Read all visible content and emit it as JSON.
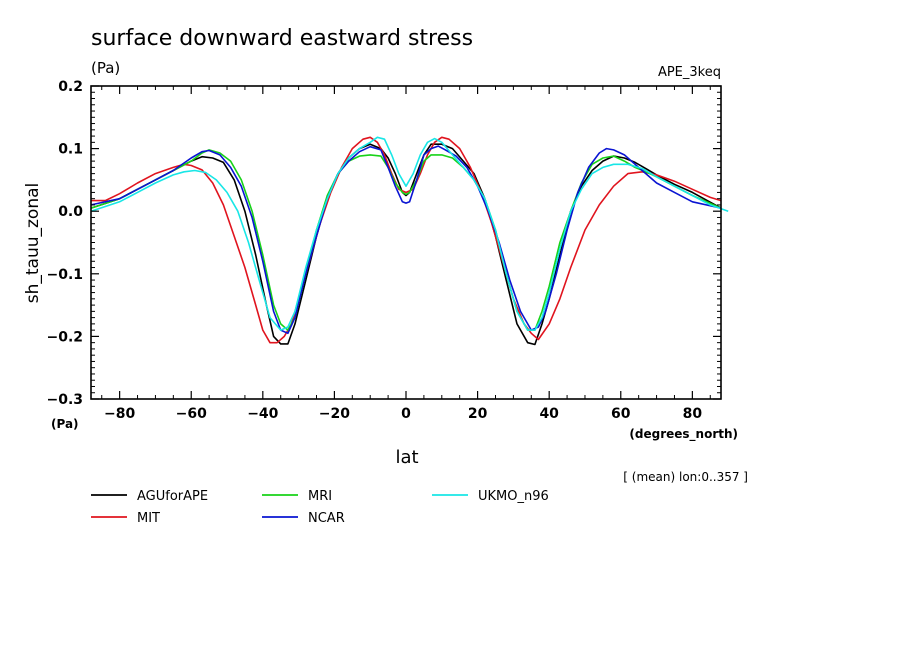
{
  "chart_data": {
    "type": "line",
    "title": "surface downward eastward stress",
    "title_unit": "(Pa)",
    "experiment": "APE_3keq",
    "xlabel": "lat",
    "xlabel_unit": "(degrees_north)",
    "ylabel": "sh_tauu_zonal",
    "ylabel_unit": "(Pa)",
    "note": "[ (mean) lon:0..357 ]",
    "xlim": [
      -88,
      88
    ],
    "ylim": [
      -0.3,
      0.2
    ],
    "x_ticks": [
      -80,
      -60,
      -40,
      -20,
      0,
      20,
      40,
      60,
      80
    ],
    "x_tick_labels": [
      "−80",
      "−60",
      "−40",
      "−20",
      "0",
      "20",
      "40",
      "60",
      "80"
    ],
    "y_ticks": [
      -0.3,
      -0.2,
      -0.1,
      0.0,
      0.1,
      0.2
    ],
    "y_tick_labels": [
      "−0.3",
      "−0.2",
      "−0.1",
      "0.0",
      "0.1",
      "0.2"
    ],
    "series": [
      {
        "name": "AGUforAPE",
        "color": "#000000",
        "x": [
          -88,
          -80,
          -75,
          -70,
          -65,
          -60,
          -57,
          -54,
          -51,
          -48,
          -45,
          -42,
          -39,
          -37,
          -35,
          -33,
          -31,
          -28,
          -25,
          -22,
          -19,
          -16,
          -13,
          -10,
          -7,
          -5,
          -3,
          -1,
          0,
          1,
          3,
          5,
          7,
          10,
          13,
          16,
          19,
          22,
          25,
          28,
          31,
          34,
          36,
          38,
          40,
          43,
          46,
          49,
          52,
          55,
          58,
          61,
          64,
          67,
          70,
          75,
          80,
          88
        ],
        "y": [
          0.005,
          0.02,
          0.035,
          0.05,
          0.065,
          0.08,
          0.087,
          0.085,
          0.078,
          0.05,
          0.0,
          -0.07,
          -0.15,
          -0.2,
          -0.212,
          -0.212,
          -0.18,
          -0.11,
          -0.04,
          0.02,
          0.06,
          0.085,
          0.1,
          0.107,
          0.1,
          0.085,
          0.06,
          0.03,
          0.025,
          0.03,
          0.06,
          0.09,
          0.107,
          0.107,
          0.1,
          0.08,
          0.06,
          0.02,
          -0.04,
          -0.11,
          -0.18,
          -0.21,
          -0.213,
          -0.18,
          -0.14,
          -0.07,
          0.0,
          0.04,
          0.065,
          0.08,
          0.088,
          0.085,
          0.078,
          0.068,
          0.058,
          0.043,
          0.03,
          0.005
        ]
      },
      {
        "name": "MIT",
        "color": "#e0141e",
        "x": [
          -88,
          -84,
          -80,
          -75,
          -70,
          -65,
          -62,
          -60,
          -57,
          -54,
          -51,
          -48,
          -45,
          -42,
          -40,
          -38,
          -36,
          -34,
          -32,
          -30,
          -27,
          -24,
          -21,
          -18,
          -15,
          -12,
          -10,
          -8,
          -6,
          -4,
          -2,
          0,
          2,
          4,
          6,
          8,
          10,
          12,
          15,
          18,
          21,
          24,
          27,
          30,
          33,
          35,
          37,
          40,
          43,
          46,
          50,
          54,
          58,
          62,
          66,
          70,
          75,
          80,
          85,
          88
        ],
        "y": [
          0.017,
          0.017,
          0.028,
          0.045,
          0.06,
          0.07,
          0.075,
          0.073,
          0.066,
          0.045,
          0.01,
          -0.04,
          -0.09,
          -0.15,
          -0.19,
          -0.21,
          -0.21,
          -0.2,
          -0.18,
          -0.14,
          -0.08,
          -0.02,
          0.03,
          0.07,
          0.1,
          0.115,
          0.118,
          0.11,
          0.09,
          0.06,
          0.035,
          0.03,
          0.035,
          0.06,
          0.09,
          0.11,
          0.118,
          0.115,
          0.1,
          0.07,
          0.03,
          -0.02,
          -0.08,
          -0.14,
          -0.18,
          -0.195,
          -0.205,
          -0.18,
          -0.14,
          -0.09,
          -0.03,
          0.01,
          0.04,
          0.06,
          0.063,
          0.058,
          0.048,
          0.035,
          0.022,
          0.017
        ]
      },
      {
        "name": "MRI",
        "color": "#18d218",
        "x": [
          -88,
          -80,
          -75,
          -70,
          -65,
          -60,
          -57,
          -55,
          -52,
          -49,
          -46,
          -43,
          -40,
          -37,
          -35,
          -33,
          -31,
          -28,
          -25,
          -22,
          -19,
          -16,
          -13,
          -10,
          -7,
          -5,
          -3,
          -1,
          0,
          1,
          3,
          5,
          7,
          10,
          13,
          16,
          19,
          22,
          25,
          28,
          31,
          34,
          36,
          38,
          40,
          43,
          46,
          49,
          52,
          55,
          58,
          61,
          64,
          67,
          70,
          75,
          80,
          88
        ],
        "y": [
          0.005,
          0.02,
          0.035,
          0.05,
          0.065,
          0.08,
          0.093,
          0.098,
          0.093,
          0.08,
          0.05,
          0.0,
          -0.07,
          -0.15,
          -0.18,
          -0.19,
          -0.17,
          -0.1,
          -0.03,
          0.025,
          0.06,
          0.08,
          0.088,
          0.09,
          0.088,
          0.07,
          0.045,
          0.03,
          0.027,
          0.03,
          0.05,
          0.08,
          0.09,
          0.09,
          0.085,
          0.07,
          0.05,
          0.02,
          -0.03,
          -0.1,
          -0.16,
          -0.19,
          -0.19,
          -0.16,
          -0.12,
          -0.05,
          0.0,
          0.045,
          0.075,
          0.085,
          0.088,
          0.08,
          0.07,
          0.063,
          0.055,
          0.04,
          0.025,
          0.005
        ]
      },
      {
        "name": "NCAR",
        "color": "#0a14d2",
        "x": [
          -88,
          -80,
          -75,
          -70,
          -65,
          -60,
          -57,
          -55,
          -52,
          -49,
          -46,
          -43,
          -40,
          -37,
          -35,
          -33,
          -31,
          -28,
          -25,
          -22,
          -19,
          -16,
          -13,
          -10,
          -7,
          -5,
          -3,
          -1,
          0,
          1,
          3,
          5,
          7,
          9,
          11,
          14,
          17,
          20,
          23,
          26,
          29,
          32,
          35,
          37,
          39,
          42,
          45,
          48,
          51,
          54,
          56,
          58,
          61,
          64,
          67,
          70,
          75,
          80,
          88
        ],
        "y": [
          0.01,
          0.02,
          0.035,
          0.05,
          0.065,
          0.085,
          0.095,
          0.097,
          0.09,
          0.07,
          0.04,
          -0.01,
          -0.08,
          -0.16,
          -0.19,
          -0.195,
          -0.17,
          -0.1,
          -0.04,
          0.02,
          0.06,
          0.08,
          0.095,
          0.103,
          0.098,
          0.07,
          0.04,
          0.015,
          0.013,
          0.015,
          0.05,
          0.09,
          0.1,
          0.104,
          0.098,
          0.088,
          0.07,
          0.04,
          0.0,
          -0.05,
          -0.11,
          -0.16,
          -0.19,
          -0.185,
          -0.16,
          -0.1,
          -0.03,
          0.03,
          0.07,
          0.093,
          0.1,
          0.098,
          0.09,
          0.075,
          0.06,
          0.045,
          0.03,
          0.015,
          0.005
        ]
      },
      {
        "name": "UKMO_n96",
        "color": "#18e6e6",
        "x": [
          -88,
          -80,
          -75,
          -70,
          -65,
          -62,
          -59,
          -56,
          -53,
          -50,
          -47,
          -44,
          -41,
          -38,
          -35,
          -33,
          -31,
          -28,
          -25,
          -22,
          -19,
          -16,
          -13,
          -10,
          -8,
          -6,
          -4,
          -2,
          0,
          2,
          4,
          6,
          8,
          10,
          13,
          16,
          19,
          22,
          25,
          28,
          31,
          34,
          36,
          38,
          40,
          43,
          46,
          49,
          52,
          55,
          58,
          62,
          66,
          70,
          75,
          80,
          85,
          90
        ],
        "y": [
          0.0,
          0.015,
          0.03,
          0.045,
          0.058,
          0.063,
          0.065,
          0.062,
          0.05,
          0.03,
          0.0,
          -0.05,
          -0.11,
          -0.17,
          -0.19,
          -0.185,
          -0.16,
          -0.09,
          -0.03,
          0.02,
          0.06,
          0.085,
          0.1,
          0.11,
          0.118,
          0.115,
          0.09,
          0.06,
          0.04,
          0.06,
          0.09,
          0.11,
          0.116,
          0.11,
          0.09,
          0.07,
          0.05,
          0.02,
          -0.03,
          -0.1,
          -0.16,
          -0.19,
          -0.19,
          -0.17,
          -0.13,
          -0.06,
          0.0,
          0.035,
          0.06,
          0.07,
          0.075,
          0.075,
          0.068,
          0.055,
          0.04,
          0.025,
          0.01,
          0.0
        ]
      }
    ]
  },
  "colors": {
    "AGUforAPE": "#000000",
    "MIT": "#e0141e",
    "MRI": "#18d218",
    "NCAR": "#0a14d2",
    "UKMO_n96": "#18e6e6"
  }
}
